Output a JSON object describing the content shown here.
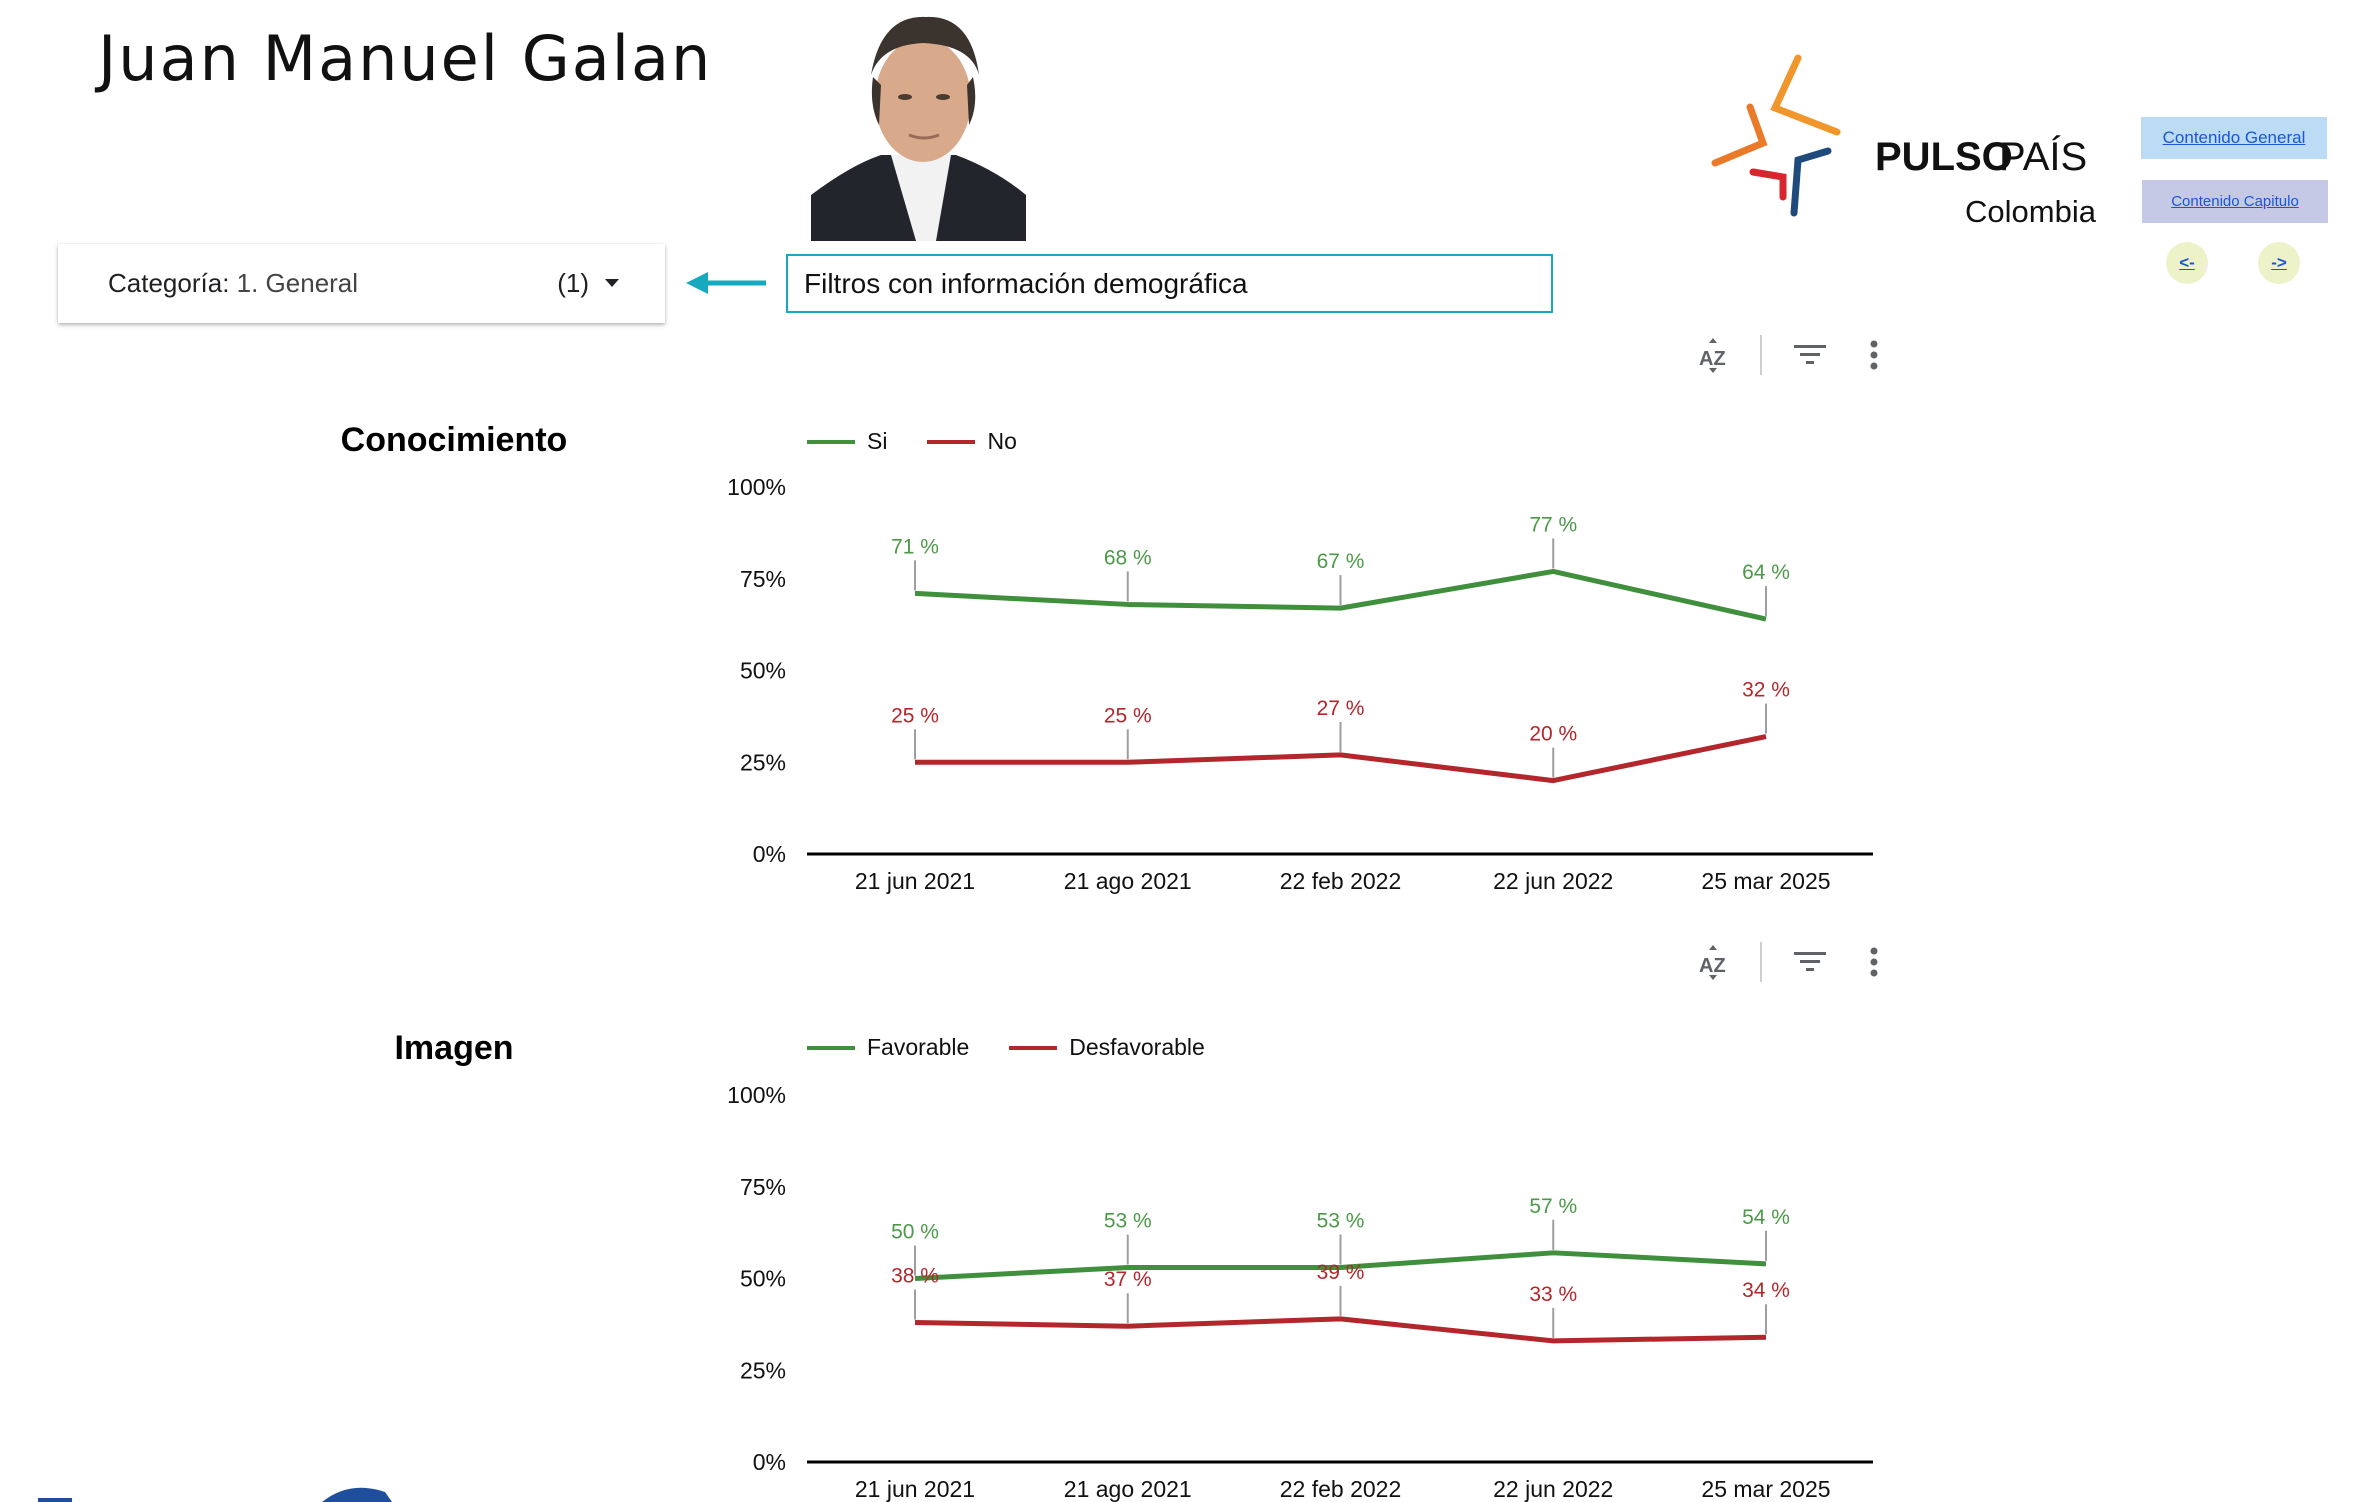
{
  "header": {
    "title": "Juan Manuel Galan",
    "photo_alt": "Juan Manuel Galan portrait"
  },
  "filter": {
    "label": "Categoría",
    "separator": ": ",
    "value": "1. General",
    "count": "(1)",
    "hint": "Filtros con información demográfica"
  },
  "brand": {
    "name_bold": "PULSO",
    "name_light": "PAÍS",
    "country": "Colombia",
    "colors": {
      "orange": "#f0962a",
      "orange_dark": "#ea7a2a",
      "red": "#d7262e",
      "blue": "#1e4a7c"
    }
  },
  "nav": {
    "general": "Contenido General",
    "capitulo": "Contenido Capitulo",
    "prev": "<-",
    "next": "->"
  },
  "toolbar_icons": [
    "sort-az-icon",
    "filter-icon",
    "more-vert-icon"
  ],
  "colors": {
    "green": "#3f8f3c",
    "red": "#b3262b",
    "label_green": "#4c9a48",
    "label_red": "#b3262b",
    "accent": "#17a9bd"
  },
  "chart_data": [
    {
      "type": "line",
      "title": "Conocimiento",
      "categories": [
        "21 jun 2021",
        "21 ago 2021",
        "22 feb 2022",
        "22 jun 2022",
        "25 mar 2025"
      ],
      "series": [
        {
          "name": "Si",
          "color": "#3f8f3c",
          "values": [
            71,
            68,
            67,
            77,
            64
          ]
        },
        {
          "name": "No",
          "color": "#b3262b",
          "values": [
            25,
            25,
            27,
            20,
            32
          ]
        }
      ],
      "yticks": [
        "0%",
        "25%",
        "50%",
        "75%",
        "100%"
      ],
      "ylim": [
        0,
        100
      ],
      "xlabel": "",
      "ylabel": "",
      "value_suffix": " %",
      "legend": "top-left",
      "grid": false
    },
    {
      "type": "line",
      "title": "Imagen",
      "categories": [
        "21 jun 2021",
        "21 ago 2021",
        "22 feb 2022",
        "22 jun 2022",
        "25 mar 2025"
      ],
      "series": [
        {
          "name": "Favorable",
          "color": "#3f8f3c",
          "values": [
            50,
            53,
            53,
            57,
            54
          ]
        },
        {
          "name": "Desfavorable",
          "color": "#b3262b",
          "values": [
            38,
            37,
            39,
            33,
            34
          ]
        }
      ],
      "yticks": [
        "0%",
        "25%",
        "50%",
        "75%",
        "100%"
      ],
      "ylim": [
        0,
        100
      ],
      "xlabel": "",
      "ylabel": "",
      "value_suffix": " %",
      "legend": "top-left",
      "grid": false
    }
  ]
}
